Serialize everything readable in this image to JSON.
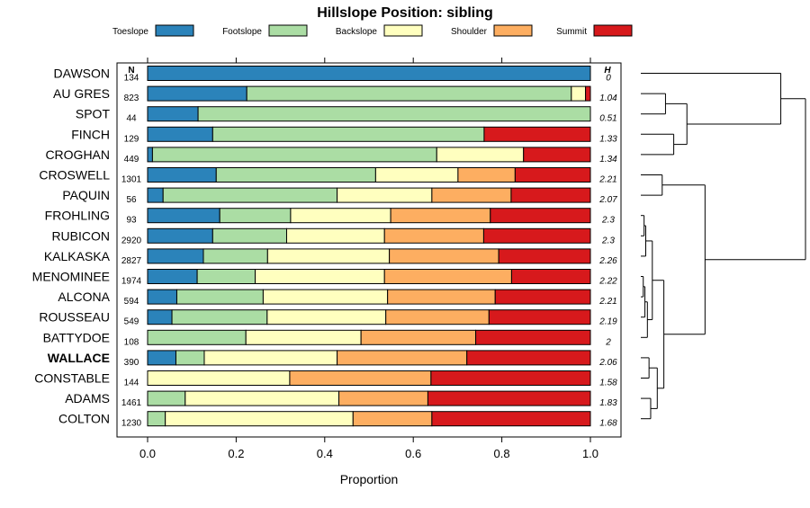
{
  "chart_data": {
    "type": "bar",
    "stacked": true,
    "orientation": "horizontal",
    "title": "Hillslope Position: sibling",
    "xlabel": "Proportion",
    "xlim": [
      0,
      1
    ],
    "x_ticks": [
      "0.0",
      "0.2",
      "0.4",
      "0.6",
      "0.8",
      "1.0"
    ],
    "legend_position": "top",
    "n_header": "N",
    "h_header": "H",
    "highlight": "WALLACE",
    "dendrogram": true,
    "categories": [
      "DAWSON",
      "AU GRES",
      "SPOT",
      "FINCH",
      "CROGHAN",
      "CROSWELL",
      "PAQUIN",
      "FROHLING",
      "RUBICON",
      "KALKASKA",
      "MENOMINEE",
      "ALCONA",
      "ROUSSEAU",
      "BATTYDOE",
      "WALLACE",
      "CONSTABLE",
      "ADAMS",
      "COLTON"
    ],
    "n": [
      "134",
      "823",
      "44",
      "129",
      "449",
      "1301",
      "56",
      "93",
      "2920",
      "2827",
      "1974",
      "594",
      "549",
      "108",
      "390",
      "144",
      "1461",
      "1230"
    ],
    "h": [
      "0",
      "1.04",
      "0.51",
      "1.33",
      "1.34",
      "2.21",
      "2.07",
      "2.3",
      "2.3",
      "2.26",
      "2.22",
      "2.21",
      "2.19",
      "2",
      "2.06",
      "1.58",
      "1.83",
      "1.68"
    ],
    "series": [
      {
        "name": "Toeslope",
        "color": "#2b83ba",
        "values": [
          1.0,
          0.224,
          0.114,
          0.147,
          0.011,
          0.155,
          0.035,
          0.163,
          0.147,
          0.126,
          0.112,
          0.066,
          0.055,
          0.0,
          0.064,
          0.0,
          0.0,
          0.0
        ]
      },
      {
        "name": "Footslope",
        "color": "#abdda4",
        "values": [
          0.0,
          0.733,
          0.886,
          0.613,
          0.642,
          0.36,
          0.393,
          0.16,
          0.167,
          0.145,
          0.131,
          0.195,
          0.215,
          0.222,
          0.064,
          0.0,
          0.085,
          0.04
        ]
      },
      {
        "name": "Backslope",
        "color": "#ffffbf",
        "values": [
          0.0,
          0.032,
          0.0,
          0.0,
          0.196,
          0.186,
          0.214,
          0.226,
          0.221,
          0.275,
          0.292,
          0.281,
          0.268,
          0.26,
          0.3,
          0.321,
          0.347,
          0.424
        ]
      },
      {
        "name": "Shoulder",
        "color": "#fdae61",
        "values": [
          0.0,
          0.0,
          0.0,
          0.0,
          0.0,
          0.129,
          0.179,
          0.225,
          0.224,
          0.247,
          0.287,
          0.243,
          0.233,
          0.259,
          0.293,
          0.319,
          0.201,
          0.178
        ]
      },
      {
        "name": "Summit",
        "color": "#d7191c",
        "values": [
          0.0,
          0.011,
          0.0,
          0.24,
          0.151,
          0.17,
          0.179,
          0.226,
          0.241,
          0.207,
          0.178,
          0.215,
          0.229,
          0.259,
          0.279,
          0.36,
          0.367,
          0.358
        ]
      }
    ]
  }
}
